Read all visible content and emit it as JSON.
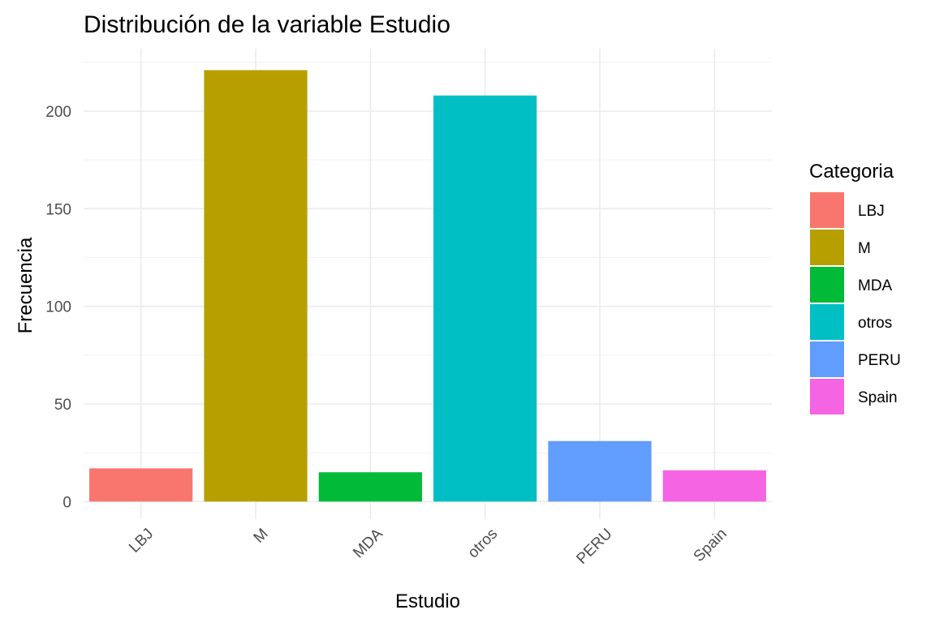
{
  "chart_data": {
    "type": "bar",
    "title": "Distribución de la variable Estudio",
    "xlabel": "Estudio",
    "ylabel": "Frecuencia",
    "categories": [
      "LBJ",
      "M",
      "MDA",
      "otros",
      "PERU",
      "Spain"
    ],
    "values": [
      17,
      221,
      15,
      208,
      31,
      16
    ],
    "colors": [
      "#F8766D",
      "#B79F00",
      "#00BA38",
      "#00BFC4",
      "#619CFF",
      "#F564E3"
    ],
    "ylim": [
      -9,
      232
    ],
    "yticks": [
      0,
      50,
      100,
      150,
      200
    ],
    "grid": true,
    "legend": {
      "title": "Categoria",
      "placement": "right",
      "entries": [
        "LBJ",
        "M",
        "MDA",
        "otros",
        "PERU",
        "Spain"
      ]
    }
  }
}
